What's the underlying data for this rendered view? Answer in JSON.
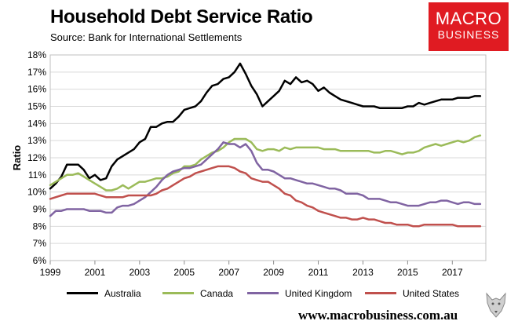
{
  "header": {
    "title": "Household Debt Service Ratio",
    "source": "Source: Bank for International Settlements"
  },
  "logo": {
    "line1": "MACRO",
    "line2": "BUSINESS"
  },
  "footer": {
    "website": "www.macrobusiness.com.au"
  },
  "chart_data": {
    "type": "line",
    "title": "Household Debt Service Ratio",
    "ylabel": "Ratio",
    "xlabel": "",
    "xlim": [
      1999,
      2018.5
    ],
    "ylim": [
      6,
      18
    ],
    "y_ticks": [
      6,
      7,
      8,
      9,
      10,
      11,
      12,
      13,
      14,
      15,
      16,
      17,
      18
    ],
    "y_tick_suffix": "%",
    "x_ticks": [
      1999,
      2001,
      2003,
      2005,
      2007,
      2009,
      2011,
      2013,
      2015,
      2017
    ],
    "legend_position": "bottom",
    "series": [
      {
        "name": "Australia",
        "color": "#000000",
        "x": [
          1999,
          1999.25,
          1999.5,
          1999.75,
          2000,
          2000.25,
          2000.5,
          2000.75,
          2001,
          2001.25,
          2001.5,
          2001.75,
          2002,
          2002.25,
          2002.5,
          2002.75,
          2003,
          2003.25,
          2003.5,
          2003.75,
          2004,
          2004.25,
          2004.5,
          2004.75,
          2005,
          2005.25,
          2005.5,
          2005.75,
          2006,
          2006.25,
          2006.5,
          2006.75,
          2007,
          2007.25,
          2007.5,
          2007.75,
          2008,
          2008.25,
          2008.5,
          2008.75,
          2009,
          2009.25,
          2009.5,
          2009.75,
          2010,
          2010.25,
          2010.5,
          2010.75,
          2011,
          2011.25,
          2011.5,
          2011.75,
          2012,
          2012.25,
          2012.5,
          2012.75,
          2013,
          2013.25,
          2013.5,
          2013.75,
          2014,
          2014.25,
          2014.5,
          2014.75,
          2015,
          2015.25,
          2015.5,
          2015.75,
          2016,
          2016.25,
          2016.5,
          2016.75,
          2017,
          2017.25,
          2017.5,
          2017.75,
          2018,
          2018.25
        ],
        "values": [
          10.2,
          10.5,
          10.9,
          11.6,
          11.6,
          11.6,
          11.3,
          10.8,
          11.0,
          10.7,
          10.8,
          11.5,
          11.9,
          12.1,
          12.3,
          12.5,
          12.9,
          13.1,
          13.8,
          13.8,
          14.0,
          14.1,
          14.1,
          14.4,
          14.8,
          14.9,
          15.0,
          15.3,
          15.8,
          16.2,
          16.3,
          16.6,
          16.7,
          17.0,
          17.5,
          16.9,
          16.2,
          15.7,
          15.0,
          15.3,
          15.6,
          15.9,
          16.5,
          16.3,
          16.7,
          16.4,
          16.5,
          16.3,
          15.9,
          16.1,
          15.8,
          15.6,
          15.4,
          15.3,
          15.2,
          15.1,
          15.0,
          15.0,
          15.0,
          14.9,
          14.9,
          14.9,
          14.9,
          14.9,
          15.0,
          15.0,
          15.2,
          15.1,
          15.2,
          15.3,
          15.4,
          15.4,
          15.4,
          15.5,
          15.5,
          15.5,
          15.6,
          15.6
        ]
      },
      {
        "name": "Canada",
        "color": "#9bbb59",
        "x": [
          1999,
          1999.25,
          1999.5,
          1999.75,
          2000,
          2000.25,
          2000.5,
          2000.75,
          2001,
          2001.25,
          2001.5,
          2001.75,
          2002,
          2002.25,
          2002.5,
          2002.75,
          2003,
          2003.25,
          2003.5,
          2003.75,
          2004,
          2004.25,
          2004.5,
          2004.75,
          2005,
          2005.25,
          2005.5,
          2005.75,
          2006,
          2006.25,
          2006.5,
          2006.75,
          2007,
          2007.25,
          2007.5,
          2007.75,
          2008,
          2008.25,
          2008.5,
          2008.75,
          2009,
          2009.25,
          2009.5,
          2009.75,
          2010,
          2010.25,
          2010.5,
          2010.75,
          2011,
          2011.25,
          2011.5,
          2011.75,
          2012,
          2012.25,
          2012.5,
          2012.75,
          2013,
          2013.25,
          2013.5,
          2013.75,
          2014,
          2014.25,
          2014.5,
          2014.75,
          2015,
          2015.25,
          2015.5,
          2015.75,
          2016,
          2016.25,
          2016.5,
          2016.75,
          2017,
          2017.25,
          2017.5,
          2017.75,
          2018,
          2018.25
        ],
        "values": [
          10.4,
          10.6,
          10.8,
          11.0,
          11.0,
          11.1,
          10.9,
          10.7,
          10.5,
          10.3,
          10.1,
          10.1,
          10.2,
          10.4,
          10.2,
          10.4,
          10.6,
          10.6,
          10.7,
          10.8,
          10.8,
          10.9,
          11.1,
          11.2,
          11.5,
          11.5,
          11.6,
          11.9,
          12.1,
          12.3,
          12.4,
          12.6,
          12.9,
          13.1,
          13.1,
          13.1,
          12.9,
          12.5,
          12.4,
          12.5,
          12.5,
          12.4,
          12.6,
          12.5,
          12.6,
          12.6,
          12.6,
          12.6,
          12.6,
          12.5,
          12.5,
          12.5,
          12.4,
          12.4,
          12.4,
          12.4,
          12.4,
          12.4,
          12.3,
          12.3,
          12.4,
          12.4,
          12.3,
          12.2,
          12.3,
          12.3,
          12.4,
          12.6,
          12.7,
          12.8,
          12.7,
          12.8,
          12.9,
          13.0,
          12.9,
          13.0,
          13.2,
          13.3
        ]
      },
      {
        "name": "United Kingdom",
        "color": "#8064a2",
        "x": [
          1999,
          1999.25,
          1999.5,
          1999.75,
          2000,
          2000.25,
          2000.5,
          2000.75,
          2001,
          2001.25,
          2001.5,
          2001.75,
          2002,
          2002.25,
          2002.5,
          2002.75,
          2003,
          2003.25,
          2003.5,
          2003.75,
          2004,
          2004.25,
          2004.5,
          2004.75,
          2005,
          2005.25,
          2005.5,
          2005.75,
          2006,
          2006.25,
          2006.5,
          2006.75,
          2007,
          2007.25,
          2007.5,
          2007.75,
          2008,
          2008.25,
          2008.5,
          2008.75,
          2009,
          2009.25,
          2009.5,
          2009.75,
          2010,
          2010.25,
          2010.5,
          2010.75,
          2011,
          2011.25,
          2011.5,
          2011.75,
          2012,
          2012.25,
          2012.5,
          2012.75,
          2013,
          2013.25,
          2013.5,
          2013.75,
          2014,
          2014.25,
          2014.5,
          2014.75,
          2015,
          2015.25,
          2015.5,
          2015.75,
          2016,
          2016.25,
          2016.5,
          2016.75,
          2017,
          2017.25,
          2017.5,
          2017.75,
          2018,
          2018.25
        ],
        "values": [
          8.6,
          8.9,
          8.9,
          9.0,
          9.0,
          9.0,
          9.0,
          8.9,
          8.9,
          8.9,
          8.8,
          8.8,
          9.1,
          9.2,
          9.2,
          9.3,
          9.5,
          9.7,
          10.0,
          10.3,
          10.7,
          11.0,
          11.2,
          11.3,
          11.4,
          11.4,
          11.5,
          11.6,
          11.9,
          12.2,
          12.5,
          12.9,
          12.8,
          12.8,
          12.6,
          12.8,
          12.4,
          11.7,
          11.3,
          11.3,
          11.2,
          11.0,
          10.8,
          10.8,
          10.7,
          10.6,
          10.5,
          10.5,
          10.4,
          10.3,
          10.2,
          10.2,
          10.1,
          9.9,
          9.9,
          9.9,
          9.8,
          9.6,
          9.6,
          9.6,
          9.5,
          9.4,
          9.4,
          9.3,
          9.2,
          9.2,
          9.2,
          9.3,
          9.4,
          9.4,
          9.5,
          9.5,
          9.4,
          9.3,
          9.4,
          9.4,
          9.3,
          9.3
        ]
      },
      {
        "name": "United States",
        "color": "#c0504d",
        "x": [
          1999,
          1999.25,
          1999.5,
          1999.75,
          2000,
          2000.25,
          2000.5,
          2000.75,
          2001,
          2001.25,
          2001.5,
          2001.75,
          2002,
          2002.25,
          2002.5,
          2002.75,
          2003,
          2003.25,
          2003.5,
          2003.75,
          2004,
          2004.25,
          2004.5,
          2004.75,
          2005,
          2005.25,
          2005.5,
          2005.75,
          2006,
          2006.25,
          2006.5,
          2006.75,
          2007,
          2007.25,
          2007.5,
          2007.75,
          2008,
          2008.25,
          2008.5,
          2008.75,
          2009,
          2009.25,
          2009.5,
          2009.75,
          2010,
          2010.25,
          2010.5,
          2010.75,
          2011,
          2011.25,
          2011.5,
          2011.75,
          2012,
          2012.25,
          2012.5,
          2012.75,
          2013,
          2013.25,
          2013.5,
          2013.75,
          2014,
          2014.25,
          2014.5,
          2014.75,
          2015,
          2015.25,
          2015.5,
          2015.75,
          2016,
          2016.25,
          2016.5,
          2016.75,
          2017,
          2017.25,
          2017.5,
          2017.75,
          2018,
          2018.25
        ],
        "values": [
          9.6,
          9.7,
          9.8,
          9.9,
          9.9,
          9.9,
          9.9,
          9.9,
          9.9,
          9.8,
          9.7,
          9.7,
          9.7,
          9.7,
          9.8,
          9.8,
          9.8,
          9.8,
          9.8,
          9.9,
          10.1,
          10.2,
          10.4,
          10.6,
          10.8,
          10.9,
          11.1,
          11.2,
          11.3,
          11.4,
          11.5,
          11.5,
          11.5,
          11.4,
          11.2,
          11.1,
          10.8,
          10.7,
          10.6,
          10.6,
          10.4,
          10.2,
          9.9,
          9.8,
          9.5,
          9.4,
          9.2,
          9.1,
          8.9,
          8.8,
          8.7,
          8.6,
          8.5,
          8.5,
          8.4,
          8.4,
          8.5,
          8.4,
          8.4,
          8.3,
          8.2,
          8.2,
          8.1,
          8.1,
          8.1,
          8.0,
          8.0,
          8.1,
          8.1,
          8.1,
          8.1,
          8.1,
          8.1,
          8.0,
          8.0,
          8.0,
          8.0,
          8.0
        ]
      }
    ]
  }
}
